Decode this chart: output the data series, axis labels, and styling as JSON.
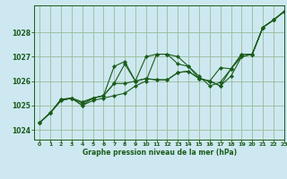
{
  "title": "Graphe pression niveau de la mer (hPa)",
  "background_color": "#cde8f0",
  "plot_bg_color": "#cde8f0",
  "grid_color": "#99bb99",
  "line_color": "#1a5c1a",
  "marker_color": "#1a5c1a",
  "xlim": [
    -0.5,
    23
  ],
  "ylim": [
    1023.6,
    1029.1
  ],
  "yticks": [
    1024,
    1025,
    1026,
    1027,
    1028
  ],
  "xticks": [
    0,
    1,
    2,
    3,
    4,
    5,
    6,
    7,
    8,
    9,
    10,
    11,
    12,
    13,
    14,
    15,
    16,
    17,
    18,
    19,
    20,
    21,
    22,
    23
  ],
  "series": [
    [
      1024.3,
      1024.7,
      1025.2,
      1025.3,
      1025.0,
      1025.2,
      1025.3,
      1025.4,
      1025.5,
      1025.8,
      1026.0,
      1027.1,
      1027.1,
      1027.0,
      1026.6,
      1026.1,
      1026.0,
      1025.8,
      1026.2,
      1027.0,
      1027.1,
      1028.2,
      1028.5,
      1028.85
    ],
    [
      1024.3,
      1024.7,
      1025.2,
      1025.3,
      1025.0,
      1025.3,
      1025.4,
      1026.6,
      1026.8,
      1026.0,
      1027.0,
      1027.1,
      1027.1,
      1026.7,
      1026.6,
      1026.2,
      1025.8,
      1025.95,
      1026.5,
      1027.0,
      1027.1,
      1028.2,
      1028.5,
      1028.85
    ],
    [
      1024.3,
      1024.7,
      1025.25,
      1025.3,
      1025.1,
      1025.3,
      1025.4,
      1025.9,
      1026.7,
      1026.0,
      1026.1,
      1026.05,
      1026.05,
      1026.35,
      1026.4,
      1026.1,
      1026.0,
      1026.55,
      1026.5,
      1027.1,
      1027.1,
      1028.2,
      1028.5,
      1028.85
    ],
    [
      1024.3,
      1024.7,
      1025.25,
      1025.3,
      1025.15,
      1025.3,
      1025.4,
      1025.9,
      1025.9,
      1026.0,
      1026.1,
      1026.05,
      1026.05,
      1026.35,
      1026.4,
      1026.1,
      1026.0,
      1025.8,
      1026.5,
      1027.1,
      1027.1,
      1028.2,
      1028.5,
      1028.85
    ]
  ]
}
